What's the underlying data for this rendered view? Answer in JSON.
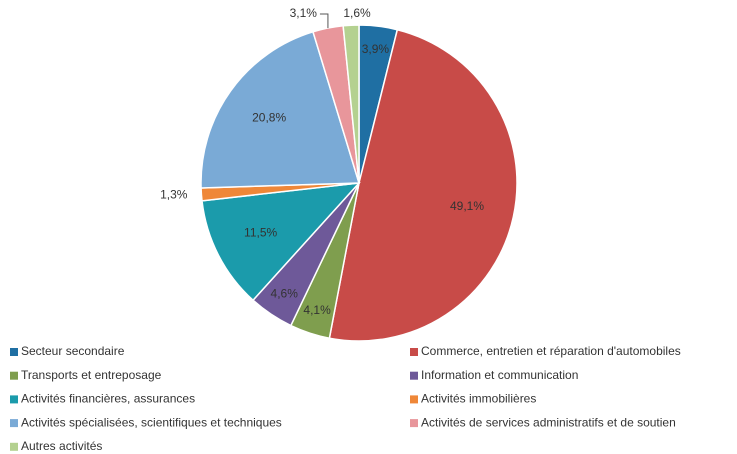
{
  "chart_data": {
    "type": "pie",
    "categories": [
      "Secteur secondaire",
      "Commerce, entretien et réparation d'automobiles",
      "Transports et entreposage",
      "Information et communication",
      "Activités financières, assurances",
      "Activités immobilières",
      "Activités spécialisées, scientifiques et techniques",
      "Activités de services administratifs et de soutien",
      "Autres activités"
    ],
    "values": [
      3.9,
      49.1,
      4.1,
      4.6,
      11.5,
      1.3,
      20.8,
      3.1,
      1.6
    ],
    "value_labels": [
      "3,9%",
      "49,1%",
      "4,1%",
      "4,6%",
      "11,5%",
      "1,3%",
      "20,8%",
      "3,1%",
      "1,6%"
    ],
    "colors": [
      "#1f6fa3",
      "#c84b48",
      "#7f9e4e",
      "#6e5999",
      "#1b9bab",
      "#ef8738",
      "#7aaad6",
      "#e8969b",
      "#b4d190"
    ],
    "legend": "bottom"
  }
}
